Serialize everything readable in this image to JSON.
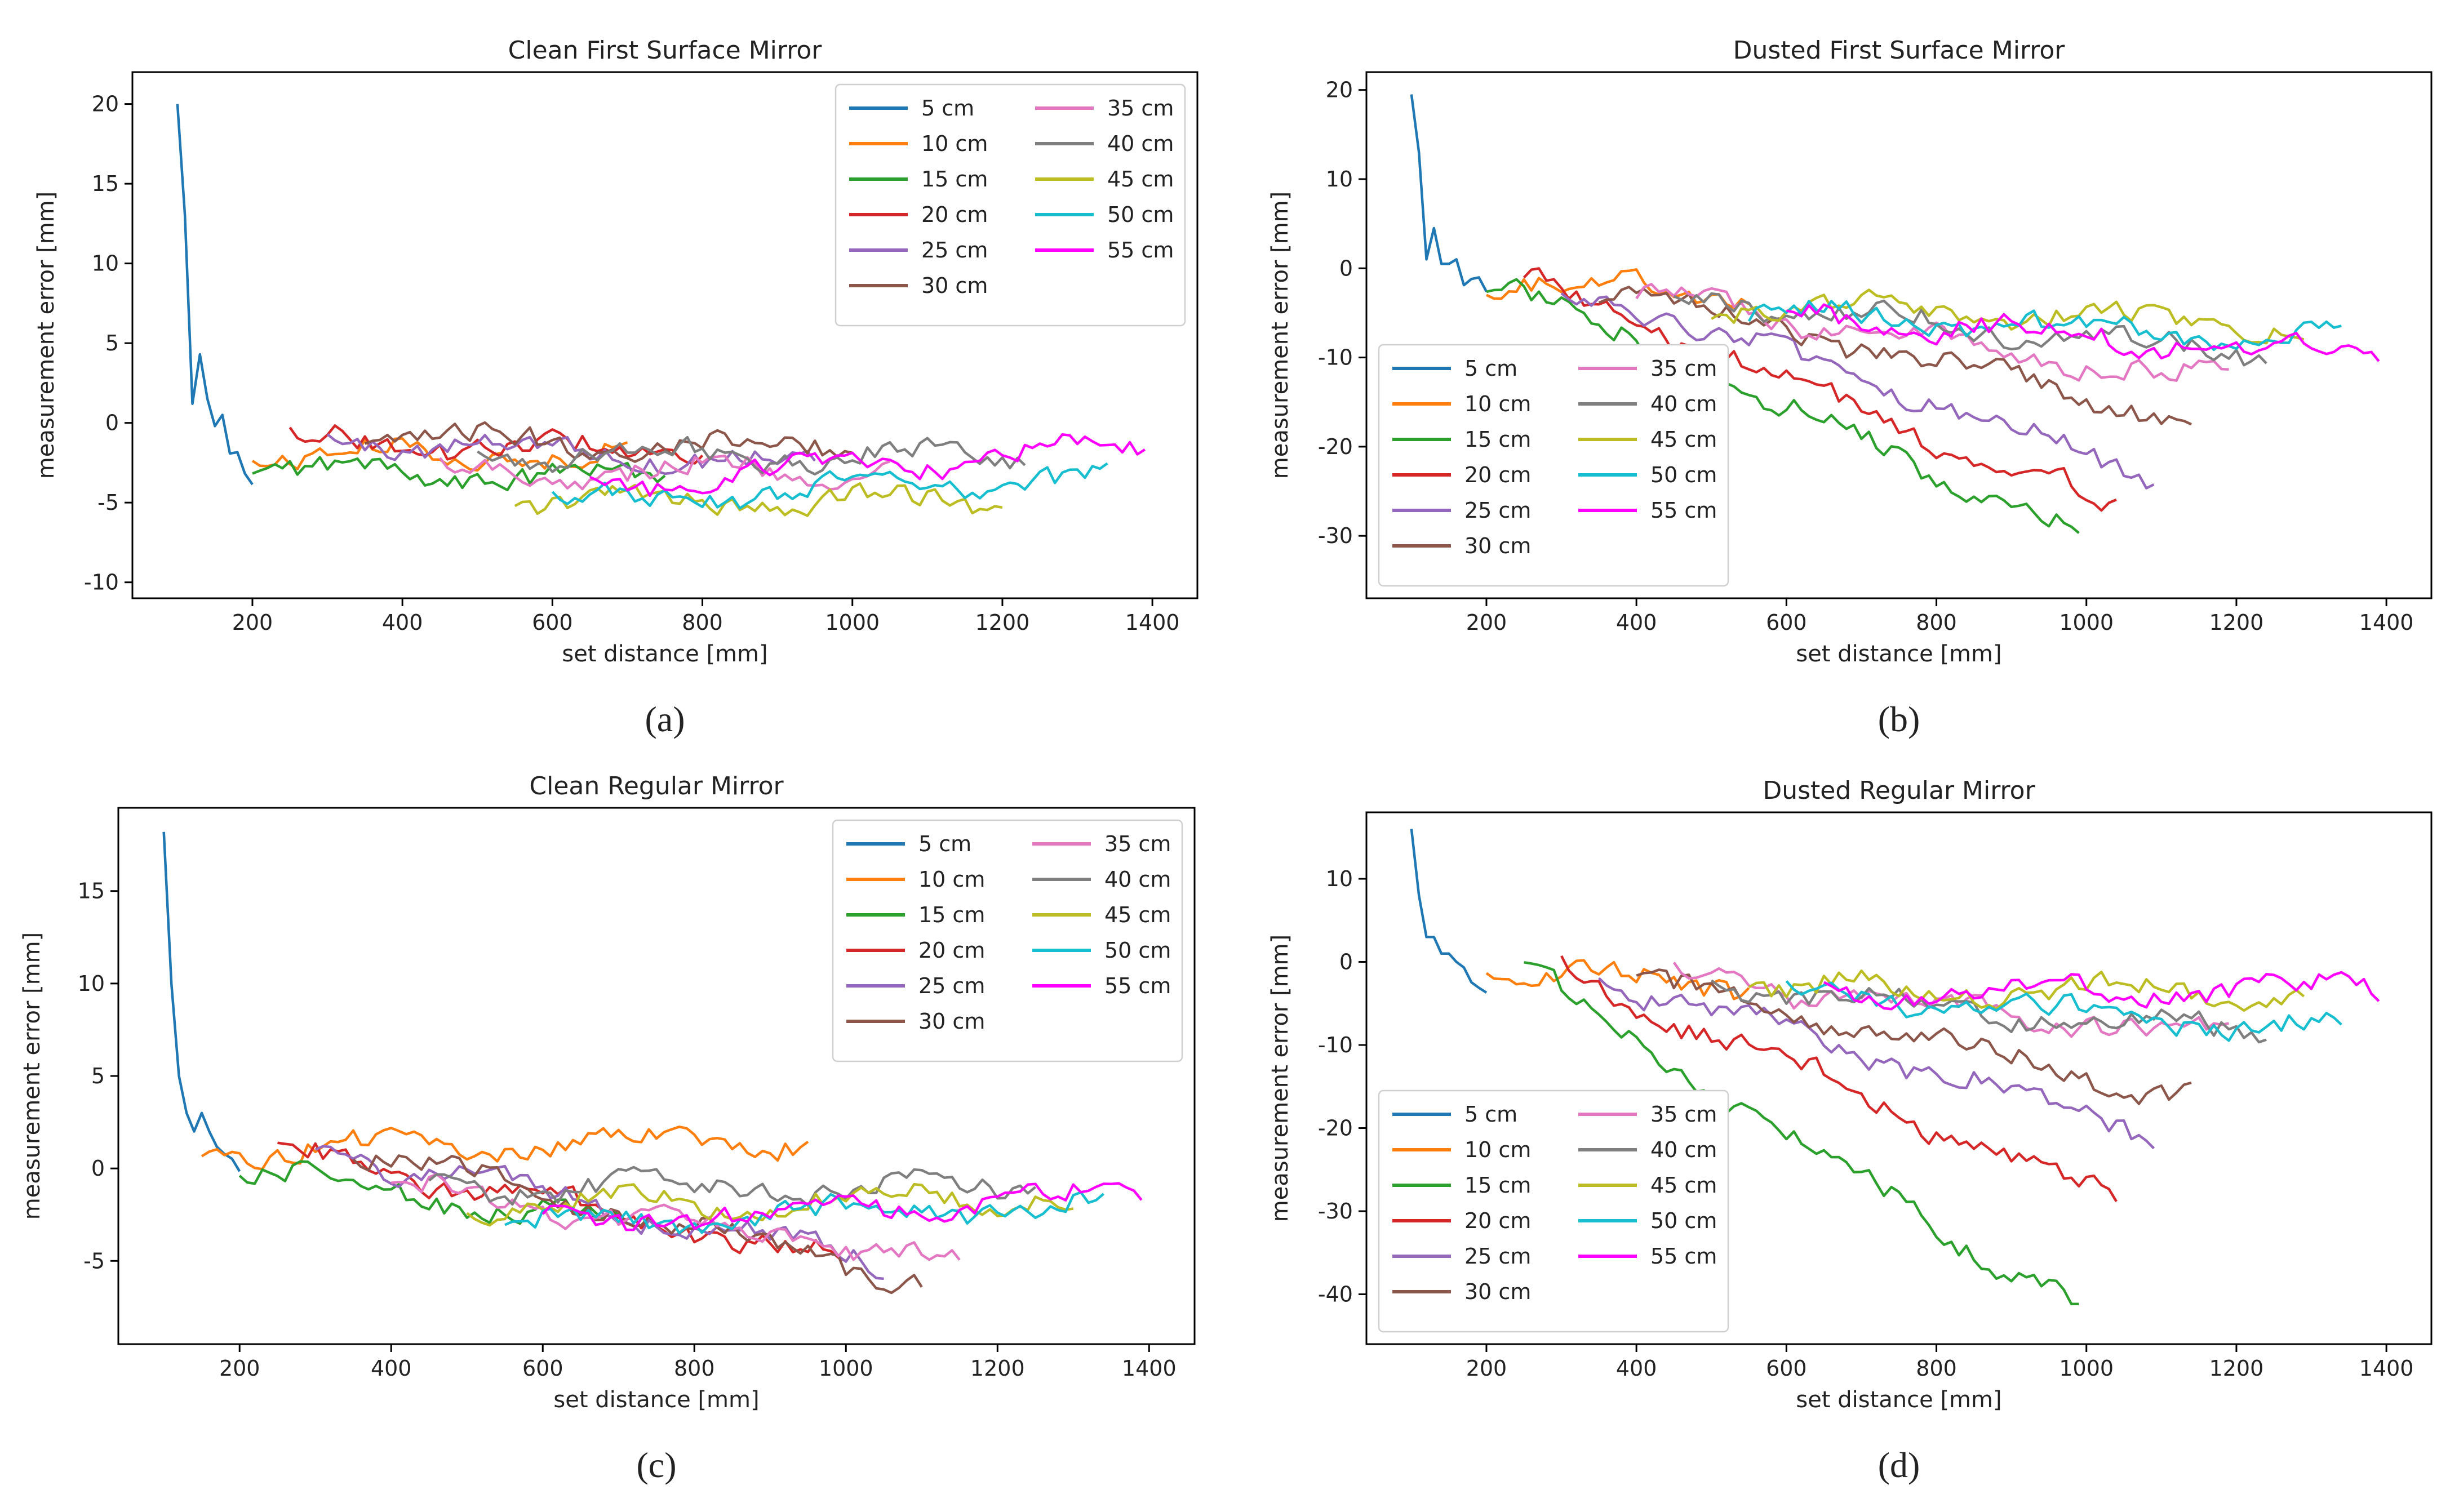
{
  "colors": {
    "5 cm": "#1f77b4",
    "10 cm": "#ff7f0e",
    "15 cm": "#2ca02c",
    "20 cm": "#d62728",
    "25 cm": "#9467bd",
    "30 cm": "#8c564b",
    "35 cm": "#e377c2",
    "40 cm": "#7f7f7f",
    "45 cm": "#bcbd22",
    "50 cm": "#17becf",
    "55 cm": "#ff00ff"
  },
  "chart_data": [
    {
      "type": "line",
      "panel": "a",
      "caption": "(a)",
      "title": "Clean First Surface Mirror",
      "xlabel": "set distance [mm]",
      "ylabel": "measurement error [mm]",
      "xlim": [
        40,
        1460
      ],
      "ylim": [
        -11,
        22
      ],
      "xticks": [
        200,
        400,
        600,
        800,
        1000,
        1200,
        1400
      ],
      "yticks": [
        -10,
        -5,
        0,
        5,
        10,
        15,
        20
      ],
      "legend_position": "top-right",
      "series": [
        {
          "name": "5 cm",
          "start": 100,
          "head": [
            20,
            13,
            1.2,
            4.3,
            1.5,
            -0.2,
            0.5
          ],
          "base_start": 0,
          "base_end": -3,
          "end": 200
        },
        {
          "name": "10 cm",
          "start": 200,
          "base_start": -2,
          "base_end": -2,
          "end": 700
        },
        {
          "name": "15 cm",
          "start": 200,
          "base_start": -3,
          "base_end": -3.5,
          "end": 750
        },
        {
          "name": "20 cm",
          "start": 250,
          "base_start": -1,
          "base_end": -2,
          "end": 800
        },
        {
          "name": "25 cm",
          "start": 300,
          "base_start": -1,
          "base_end": -2.5,
          "end": 950
        },
        {
          "name": "30 cm",
          "start": 350,
          "base_start": -1,
          "base_end": -1.5,
          "end": 1000
        },
        {
          "name": "35 cm",
          "start": 450,
          "base_start": -3,
          "base_end": -3,
          "end": 1050
        },
        {
          "name": "40 cm",
          "start": 500,
          "base_start": -2,
          "base_end": -2,
          "end": 1230
        },
        {
          "name": "45 cm",
          "start": 550,
          "base_start": -5,
          "base_end": -5,
          "end": 1200
        },
        {
          "name": "50 cm",
          "start": 600,
          "base_start": -5,
          "base_end": -3.5,
          "end": 1340
        },
        {
          "name": "55 cm",
          "start": 650,
          "base_start": -4,
          "base_end": -1.5,
          "end": 1390
        }
      ]
    },
    {
      "type": "line",
      "panel": "b",
      "caption": "(b)",
      "title": "Dusted First Surface Mirror",
      "xlabel": "set distance [mm]",
      "ylabel": "measurement error [mm]",
      "xlim": [
        40,
        1460
      ],
      "ylim": [
        -37,
        22
      ],
      "xticks": [
        200,
        400,
        600,
        800,
        1000,
        1200,
        1400
      ],
      "yticks": [
        -30,
        -20,
        -10,
        0,
        10,
        20
      ],
      "legend_position": "bottom-left",
      "series": [
        {
          "name": "5 cm",
          "start": 100,
          "head": [
            19.5,
            13,
            1,
            4.5,
            0.5,
            0.5,
            1
          ],
          "base_start": 0.5,
          "base_end": -1.5,
          "end": 200
        },
        {
          "name": "10 cm",
          "start": 200,
          "base_start": -1,
          "base_end": -3,
          "end": 550
        },
        {
          "name": "15 cm",
          "start": 200,
          "base_start": -1,
          "base_end": -30,
          "end": 990
        },
        {
          "name": "20 cm",
          "start": 250,
          "base_start": -1,
          "base_end": -27,
          "end": 1040
        },
        {
          "name": "25 cm",
          "start": 300,
          "base_start": -2,
          "base_end": -23,
          "end": 1090
        },
        {
          "name": "30 cm",
          "start": 350,
          "base_start": -2,
          "base_end": -17,
          "end": 1140
        },
        {
          "name": "35 cm",
          "start": 400,
          "base_start": -3,
          "base_end": -13,
          "end": 1190
        },
        {
          "name": "40 cm",
          "start": 450,
          "base_start": -3,
          "base_end": -10,
          "end": 1240
        },
        {
          "name": "45 cm",
          "start": 500,
          "base_start": -4,
          "base_end": -6.5,
          "end": 1290
        },
        {
          "name": "50 cm",
          "start": 550,
          "base_start": -5,
          "base_end": -8,
          "end": 1340
        },
        {
          "name": "55 cm",
          "start": 600,
          "base_start": -5,
          "base_end": -10,
          "end": 1390
        }
      ]
    },
    {
      "type": "line",
      "panel": "c",
      "caption": "(c)",
      "title": "Clean Regular Mirror",
      "xlabel": "set distance [mm]",
      "ylabel": "measurement error [mm]",
      "xlim": [
        40,
        1460
      ],
      "ylim": [
        -9.5,
        19.5
      ],
      "xticks": [
        200,
        400,
        600,
        800,
        1000,
        1200,
        1400
      ],
      "yticks": [
        -5,
        0,
        5,
        10,
        15
      ],
      "legend_position": "top-right",
      "series": [
        {
          "name": "5 cm",
          "start": 100,
          "head": [
            18.2,
            10,
            5,
            3,
            2,
            3,
            2
          ],
          "base_start": 3,
          "base_end": 0.5,
          "end": 200
        },
        {
          "name": "10 cm",
          "start": 150,
          "base_start": 1,
          "base_end": 1.5,
          "end": 950
        },
        {
          "name": "15 cm",
          "start": 200,
          "base_start": 0,
          "base_end": -3,
          "end": 700
        },
        {
          "name": "20 cm",
          "start": 250,
          "base_start": 1,
          "base_end": -5,
          "end": 1000
        },
        {
          "name": "25 cm",
          "start": 300,
          "base_start": 1,
          "base_end": -5,
          "end": 1050
        },
        {
          "name": "30 cm",
          "start": 350,
          "base_start": 1,
          "base_end": -6,
          "end": 1100
        },
        {
          "name": "35 cm",
          "start": 400,
          "base_start": -1,
          "base_end": -5,
          "end": 1150
        },
        {
          "name": "40 cm",
          "start": 450,
          "base_start": -1,
          "base_end": -1,
          "end": 1250
        },
        {
          "name": "45 cm",
          "start": 500,
          "base_start": -2,
          "base_end": -1.5,
          "end": 1300
        },
        {
          "name": "50 cm",
          "start": 550,
          "base_start": -3,
          "base_end": -2,
          "end": 1340
        },
        {
          "name": "55 cm",
          "start": 600,
          "base_start": -3,
          "base_end": -1.5,
          "end": 1390
        }
      ]
    },
    {
      "type": "line",
      "panel": "d",
      "caption": "(d)",
      "title": "Dusted Regular Mirror",
      "xlabel": "set distance [mm]",
      "ylabel": "measurement error [mm]",
      "xlim": [
        40,
        1460
      ],
      "ylim": [
        -46,
        18
      ],
      "xticks": [
        200,
        400,
        600,
        800,
        1000,
        1200,
        1400
      ],
      "yticks": [
        -40,
        -30,
        -20,
        -10,
        0,
        10
      ],
      "legend_position": "bottom-left",
      "series": [
        {
          "name": "5 cm",
          "start": 100,
          "head": [
            16,
            8,
            3,
            3,
            1,
            1,
            0
          ],
          "base_start": 0,
          "base_end": -2,
          "end": 200
        },
        {
          "name": "10 cm",
          "start": 200,
          "base_start": -1,
          "base_end": -3,
          "end": 550
        },
        {
          "name": "15 cm",
          "start": 250,
          "base_start": -1,
          "base_end": -42,
          "end": 990
        },
        {
          "name": "20 cm",
          "start": 300,
          "base_start": -1,
          "base_end": -29,
          "end": 1040
        },
        {
          "name": "25 cm",
          "start": 350,
          "base_start": -2,
          "base_end": -20.5,
          "end": 1090
        },
        {
          "name": "30 cm",
          "start": 400,
          "base_start": -2,
          "base_end": -16.5,
          "end": 1140
        },
        {
          "name": "35 cm",
          "start": 450,
          "base_start": -2,
          "base_end": -9,
          "end": 1190
        },
        {
          "name": "40 cm",
          "start": 500,
          "base_start": -3,
          "base_end": -8.5,
          "end": 1240
        },
        {
          "name": "45 cm",
          "start": 550,
          "base_start": -3,
          "base_end": -4,
          "end": 1290
        },
        {
          "name": "50 cm",
          "start": 600,
          "base_start": -4,
          "base_end": -8,
          "end": 1340
        },
        {
          "name": "55 cm",
          "start": 650,
          "base_start": -4,
          "base_end": -3,
          "end": 1390
        }
      ]
    }
  ]
}
